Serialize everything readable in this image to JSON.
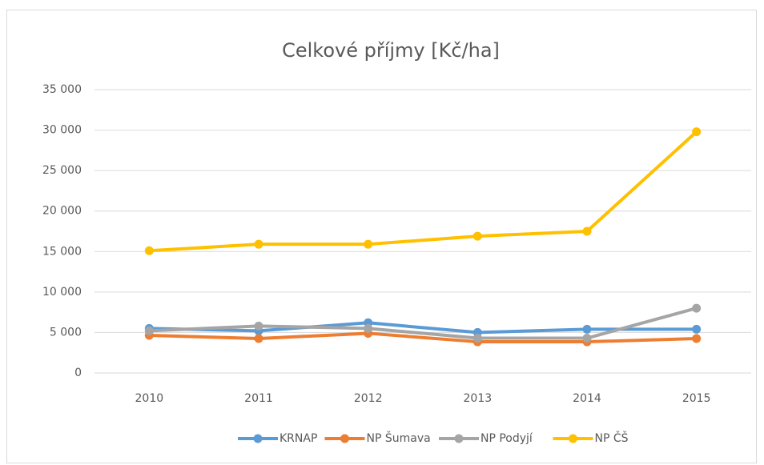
{
  "chart_data": {
    "type": "line",
    "title": "Celkové příjmy [Kč/ha]",
    "categories": [
      "2010",
      "2011",
      "2012",
      "2013",
      "2014",
      "2015"
    ],
    "series": [
      {
        "name": "KRNAP",
        "color": "#5b9bd5",
        "values": [
          5500,
          5200,
          6200,
          5000,
          5400,
          5400
        ]
      },
      {
        "name": "NP Šumava",
        "color": "#ed7d31",
        "values": [
          4650,
          4250,
          4900,
          3850,
          3850,
          4250
        ]
      },
      {
        "name": "NP Podyjí",
        "color": "#a5a5a5",
        "values": [
          5200,
          5800,
          5500,
          4300,
          4300,
          8000
        ]
      },
      {
        "name": "NP ČŠ",
        "color": "#ffc000",
        "values": [
          15100,
          15900,
          15900,
          16900,
          17500,
          29800
        ]
      }
    ],
    "ylim": [
      0,
      35000
    ],
    "yticks": [
      {
        "value": 0,
        "label": "0"
      },
      {
        "value": 5000,
        "label": "5 000"
      },
      {
        "value": 10000,
        "label": "10 000"
      },
      {
        "value": 15000,
        "label": "15 000"
      },
      {
        "value": 20000,
        "label": "20 000"
      },
      {
        "value": 25000,
        "label": "25 000"
      },
      {
        "value": 30000,
        "label": "30 000"
      },
      {
        "value": 35000,
        "label": "35 000"
      }
    ],
    "grid": true,
    "legend": "bottom"
  }
}
